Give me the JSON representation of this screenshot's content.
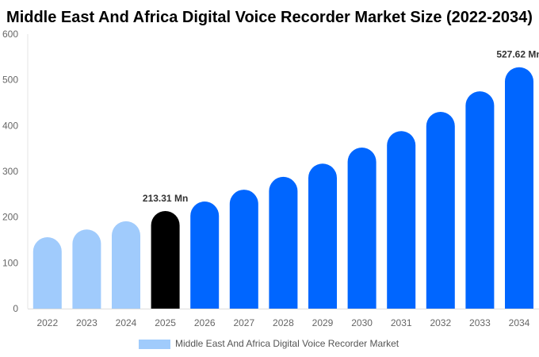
{
  "chart_data": {
    "type": "bar",
    "title": "Middle East And Africa Digital Voice Recorder Market Size (2022-2034)",
    "categories": [
      "2022",
      "2023",
      "2024",
      "2025",
      "2026",
      "2027",
      "2028",
      "2029",
      "2030",
      "2031",
      "2032",
      "2033",
      "2034"
    ],
    "series": [
      {
        "name": "Middle East And Africa Digital Voice Recorder Market",
        "values": [
          156,
          173,
          191,
          213.31,
          234,
          260,
          288,
          317,
          352,
          388,
          430,
          475,
          527.62
        ]
      }
    ],
    "data_labels": [
      {
        "category": "2025",
        "text": "213.31 Mn"
      },
      {
        "category": "2034",
        "text": "527.62 Mn"
      }
    ],
    "ylim": [
      0,
      600
    ],
    "yticks": [
      0,
      100,
      200,
      300,
      400,
      500,
      600
    ],
    "grid": false,
    "legend": "bottom",
    "colors": {
      "history": "#a0cbfc",
      "current": "#000000",
      "forecast": "#0066ff"
    }
  }
}
